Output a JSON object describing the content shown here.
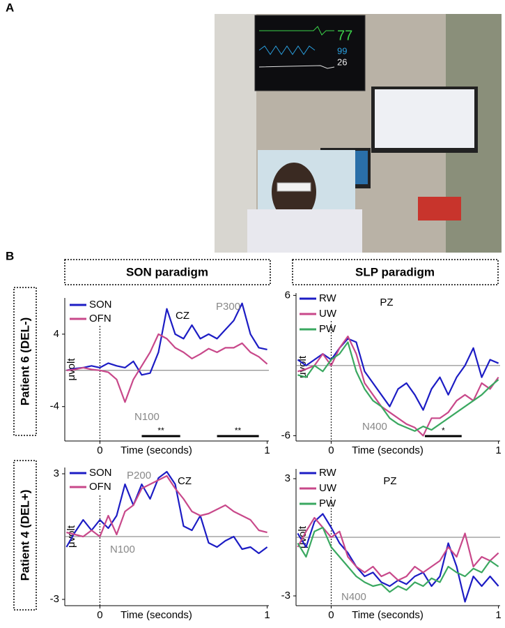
{
  "labels": {
    "a": "A",
    "b": "B"
  },
  "photo": {
    "monitor_readings": [
      "77",
      "99",
      "26"
    ]
  },
  "paradigms": [
    "SON paradigm",
    "SLP paradigm"
  ],
  "patients": [
    "Patient 6 (DEL-)",
    "Patient 4 (DEL+)"
  ],
  "chart_data": [
    {
      "type": "line",
      "title": "CZ",
      "x_label": "Time (seconds)",
      "y_label": "μvolt",
      "x": [
        -0.2,
        -0.15,
        -0.1,
        -0.05,
        0,
        0.05,
        0.1,
        0.15,
        0.2,
        0.25,
        0.3,
        0.35,
        0.4,
        0.45,
        0.5,
        0.55,
        0.6,
        0.65,
        0.7,
        0.75,
        0.8,
        0.85,
        0.9,
        0.95,
        1.0
      ],
      "series": [
        {
          "name": "SON",
          "color": "#1c1cc4",
          "values": [
            0,
            0.2,
            0.3,
            0.5,
            0.3,
            0.8,
            0.5,
            0.3,
            1.0,
            -0.5,
            -0.3,
            2,
            6.8,
            4,
            3.5,
            5,
            3.5,
            4,
            3.5,
            4.5,
            5.5,
            7.4,
            4,
            2.5,
            2.3
          ]
        },
        {
          "name": "OFN",
          "color": "#c8488a",
          "values": [
            0,
            0.1,
            0.3,
            0.1,
            0,
            -0.2,
            -1,
            -3.5,
            -1,
            0.5,
            2,
            4,
            3.5,
            2.5,
            2,
            1.3,
            1.8,
            2.4,
            2,
            2.5,
            2.5,
            3,
            2,
            1.5,
            0.7
          ]
        }
      ],
      "annotations": [
        "N100",
        "P300"
      ],
      "significance": [
        {
          "start": 0.25,
          "end": 0.48,
          "label": "**"
        },
        {
          "start": 0.7,
          "end": 0.95,
          "label": "**"
        }
      ],
      "xlim": [
        -0.21,
        1.01
      ],
      "ylim": [
        -7.8,
        8
      ],
      "xticks": [
        0,
        1
      ],
      "yticks": [
        4,
        -4
      ]
    },
    {
      "type": "line",
      "title": "PZ",
      "x_label": "Time (seconds)",
      "y_label": "μvolt",
      "x": [
        -0.2,
        -0.15,
        -0.1,
        -0.05,
        0,
        0.05,
        0.1,
        0.15,
        0.2,
        0.25,
        0.3,
        0.35,
        0.4,
        0.45,
        0.5,
        0.55,
        0.6,
        0.65,
        0.7,
        0.75,
        0.8,
        0.85,
        0.9,
        0.95,
        1.0
      ],
      "series": [
        {
          "name": "RW",
          "color": "#1c1cc4",
          "values": [
            0.5,
            0,
            0.5,
            1,
            0.5,
            1.5,
            2.3,
            2,
            -0.5,
            -1.5,
            -2.5,
            -3.5,
            -2,
            -1.5,
            -2.5,
            -3.8,
            -2,
            -1,
            -2.5,
            -1,
            0,
            1.5,
            -1,
            0.5,
            0.2
          ]
        },
        {
          "name": "UW",
          "color": "#c8488a",
          "values": [
            -0.5,
            -0.3,
            0,
            1,
            0,
            1.5,
            2.5,
            1,
            -1.5,
            -2.5,
            -3.5,
            -4,
            -4.5,
            -5,
            -5.3,
            -6,
            -4.5,
            -4.5,
            -4,
            -3,
            -2.5,
            -3,
            -1.5,
            -2,
            -1
          ]
        },
        {
          "name": "PW",
          "color": "#3aa860",
          "values": [
            -0.8,
            -1,
            0,
            -0.5,
            0.5,
            1,
            2,
            -0.5,
            -2,
            -3,
            -3.5,
            -4.5,
            -5,
            -5.3,
            -5.6,
            -5.2,
            -5.5,
            -5,
            -4.5,
            -4,
            -3.5,
            -3,
            -2.5,
            -1.8,
            -1.2
          ]
        }
      ],
      "annotations": [
        "N400"
      ],
      "significance": [
        {
          "start": 0.56,
          "end": 0.78,
          "label": "*"
        }
      ],
      "xlim": [
        -0.21,
        1.01
      ],
      "ylim": [
        -6.45,
        6.2
      ],
      "xticks": [
        0,
        1
      ],
      "yticks": [
        6,
        -6
      ]
    },
    {
      "type": "line",
      "title": "CZ",
      "x_label": "Time (seconds)",
      "y_label": "μvolt",
      "x": [
        -0.2,
        -0.15,
        -0.1,
        -0.05,
        0,
        0.05,
        0.1,
        0.15,
        0.2,
        0.25,
        0.3,
        0.35,
        0.4,
        0.45,
        0.5,
        0.55,
        0.6,
        0.65,
        0.7,
        0.75,
        0.8,
        0.85,
        0.9,
        0.95,
        1.0
      ],
      "series": [
        {
          "name": "SON",
          "color": "#1c1cc4",
          "values": [
            -0.5,
            0.2,
            0.8,
            0.3,
            0.8,
            0.4,
            1,
            2.5,
            1.5,
            2.5,
            1.8,
            2.8,
            3.1,
            2.5,
            0.5,
            0.3,
            1,
            -0.3,
            -0.5,
            -0.2,
            0,
            -0.6,
            -0.5,
            -0.8,
            -0.5
          ]
        },
        {
          "name": "OFN",
          "color": "#c8488a",
          "values": [
            0.2,
            0.1,
            0,
            0.3,
            0,
            1,
            0.1,
            1.2,
            1.5,
            2.3,
            2.5,
            2.7,
            2.9,
            2.3,
            1.8,
            1.2,
            1,
            1.1,
            1.3,
            1.5,
            1.2,
            1,
            0.8,
            0.3,
            0.2
          ]
        }
      ],
      "annotations": [
        "P200",
        "N100"
      ],
      "xlim": [
        -0.21,
        1.01
      ],
      "ylim": [
        -3.3,
        3.3
      ],
      "xticks": [
        0,
        1
      ],
      "yticks": [
        3,
        -3
      ]
    },
    {
      "type": "line",
      "title": "PZ",
      "x_label": "Time (seconds)",
      "y_label": "μvolt",
      "x": [
        -0.2,
        -0.15,
        -0.1,
        -0.05,
        0,
        0.05,
        0.1,
        0.15,
        0.2,
        0.25,
        0.3,
        0.35,
        0.4,
        0.45,
        0.5,
        0.55,
        0.6,
        0.65,
        0.7,
        0.75,
        0.8,
        0.85,
        0.9,
        0.95,
        1.0
      ],
      "series": [
        {
          "name": "RW",
          "color": "#1c1cc4",
          "values": [
            0.2,
            -0.5,
            0.8,
            1.2,
            0.5,
            -0.3,
            -0.8,
            -1.5,
            -2,
            -1.8,
            -2.3,
            -2.5,
            -2.2,
            -2.4,
            -2,
            -1.8,
            -2.5,
            -2,
            -0.3,
            -1.5,
            -3.3,
            -2,
            -2.5,
            -2,
            -2.5
          ]
        },
        {
          "name": "UW",
          "color": "#c8488a",
          "values": [
            -0.5,
            0.3,
            1,
            0.5,
            0,
            0.3,
            -1,
            -1.5,
            -1.8,
            -1.5,
            -2,
            -1.8,
            -2.2,
            -2,
            -1.5,
            -1.8,
            -1.5,
            -1.2,
            -0.5,
            -1,
            0.2,
            -1.5,
            -1,
            -1.2,
            -0.8
          ]
        },
        {
          "name": "PW",
          "color": "#3aa860",
          "values": [
            -0.3,
            -1,
            0.3,
            0.5,
            -0.5,
            -1,
            -1.5,
            -2,
            -2.3,
            -2.5,
            -2.4,
            -2.8,
            -2.5,
            -2.7,
            -2.3,
            -2.5,
            -2.1,
            -2.3,
            -1.5,
            -1.8,
            -2,
            -1.6,
            -1.8,
            -1.2,
            -1.5
          ]
        }
      ],
      "annotations": [
        "N400"
      ],
      "xlim": [
        -0.21,
        1.01
      ],
      "ylim": [
        -3.5,
        3.5
      ],
      "xticks": [
        0,
        1
      ],
      "yticks": [
        3,
        -3
      ]
    }
  ]
}
